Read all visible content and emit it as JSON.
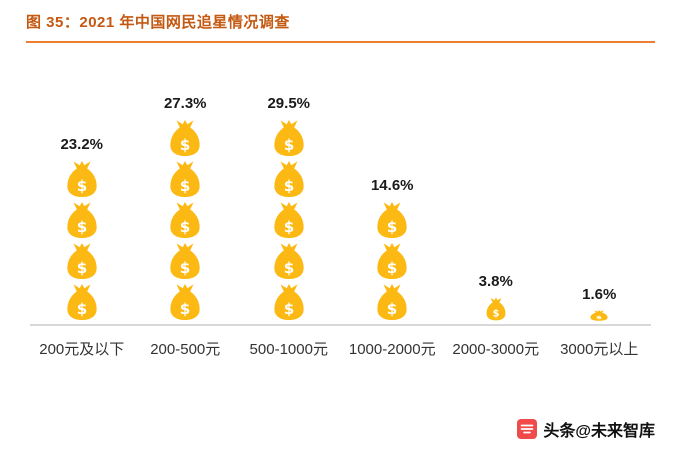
{
  "header": {
    "title": "图 35：2021 年中国网民追星情况调查"
  },
  "chart_data": {
    "type": "bar",
    "subtype": "pictogram-money-bags",
    "title": "2021 年中国网民追星情况调查",
    "categories": [
      "200元及以下",
      "200-500元",
      "500-1000元",
      "1000-2000元",
      "2000-3000元",
      "3000元以上"
    ],
    "values": [
      23.2,
      27.3,
      29.5,
      14.6,
      3.8,
      1.6
    ],
    "value_labels": [
      "23.2%",
      "27.3%",
      "29.5%",
      "14.6%",
      "3.8%",
      "1.6%"
    ],
    "unit": "%",
    "ylim": [
      0,
      30
    ],
    "bag_unit_percent": 6,
    "legend": "none",
    "grid": false,
    "colors": {
      "bag": "#FDB913",
      "title": "#C45911",
      "divider": "#ED7D31",
      "axis": "#D8D8D8",
      "label": "#1a1a1a"
    }
  },
  "footer": {
    "watermark": "头条@未来智库"
  }
}
